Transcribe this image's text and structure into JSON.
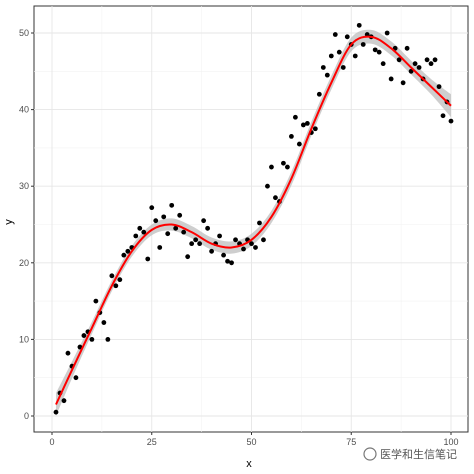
{
  "chart_data": {
    "type": "scatter",
    "xlabel": "x",
    "ylabel": "y",
    "xlim": [
      0,
      100
    ],
    "ylim": [
      0,
      52
    ],
    "xticks": [
      0,
      25,
      50,
      75,
      100
    ],
    "xtick_labels": [
      "0",
      "25",
      "50",
      "75",
      "100"
    ],
    "yticks": [
      0,
      10,
      20,
      30,
      40,
      50
    ],
    "ytick_labels": [
      "0",
      "10",
      "20",
      "30",
      "40",
      "50"
    ],
    "grid": true,
    "legend": "none",
    "points": {
      "color": "#000000",
      "x": [
        1,
        2,
        3,
        4,
        5,
        6,
        7,
        8,
        9,
        10,
        11,
        12,
        13,
        14,
        15,
        16,
        17,
        18,
        19,
        20,
        21,
        22,
        23,
        24,
        25,
        26,
        27,
        28,
        29,
        30,
        31,
        32,
        33,
        34,
        35,
        36,
        37,
        38,
        39,
        40,
        41,
        42,
        43,
        44,
        45,
        46,
        47,
        48,
        49,
        50,
        51,
        52,
        53,
        54,
        55,
        56,
        57,
        58,
        59,
        60,
        61,
        62,
        63,
        64,
        65,
        66,
        67,
        68,
        69,
        70,
        71,
        72,
        73,
        74,
        75,
        76,
        77,
        78,
        79,
        80,
        81,
        82,
        83,
        84,
        85,
        86,
        87,
        88,
        89,
        90,
        91,
        92,
        93,
        94,
        95,
        96,
        97,
        98,
        99,
        100
      ],
      "y": [
        0.5,
        3,
        2,
        8.2,
        6.5,
        5,
        9,
        10.5,
        11,
        10,
        15,
        13.5,
        12.2,
        10,
        18.3,
        17,
        17.8,
        21,
        21.5,
        22,
        23.5,
        24.5,
        24,
        20.5,
        27.2,
        25.5,
        22,
        26,
        23.8,
        27.5,
        24.5,
        26.2,
        24,
        20.8,
        22.5,
        23,
        22.5,
        25.5,
        24.5,
        21.5,
        22.5,
        23.5,
        21,
        20.2,
        20,
        23,
        22.5,
        21.8,
        23,
        22.5,
        22,
        25.2,
        23,
        30,
        32.5,
        28.5,
        28,
        33,
        32.5,
        36.5,
        39,
        35.5,
        38,
        38.2,
        37,
        37.5,
        42,
        45.5,
        44.5,
        47,
        49.8,
        47.5,
        45.5,
        49.5,
        48.5,
        47,
        51,
        48.5,
        49.8,
        49.5,
        47.8,
        47.5,
        46,
        50,
        44,
        48,
        46.5,
        43.5,
        48,
        45,
        46,
        45.5,
        44,
        46.5,
        46,
        46.5,
        43,
        39.2,
        41,
        38.5
      ]
    },
    "smooth": {
      "color": "#ff0000",
      "band_color": "#bdbdbd",
      "x": [
        1,
        5,
        10,
        15,
        20,
        25,
        30,
        35,
        40,
        45,
        50,
        55,
        60,
        65,
        70,
        75,
        80,
        85,
        90,
        95,
        100
      ],
      "y": [
        1.5,
        6,
        11.5,
        17,
        21.5,
        24.3,
        25,
        24,
        22.5,
        22,
        23,
        26,
        31,
        37.5,
        43.5,
        48.5,
        49.5,
        48,
        45.5,
        43,
        40.5
      ],
      "se": [
        1.5,
        1.1,
        0.8,
        0.7,
        0.7,
        0.7,
        0.8,
        0.8,
        0.8,
        0.8,
        0.8,
        0.8,
        0.9,
        0.9,
        0.9,
        0.9,
        0.9,
        0.9,
        0.9,
        1.0,
        1.5
      ]
    }
  },
  "watermark": {
    "text": "医学和生信笔记"
  }
}
